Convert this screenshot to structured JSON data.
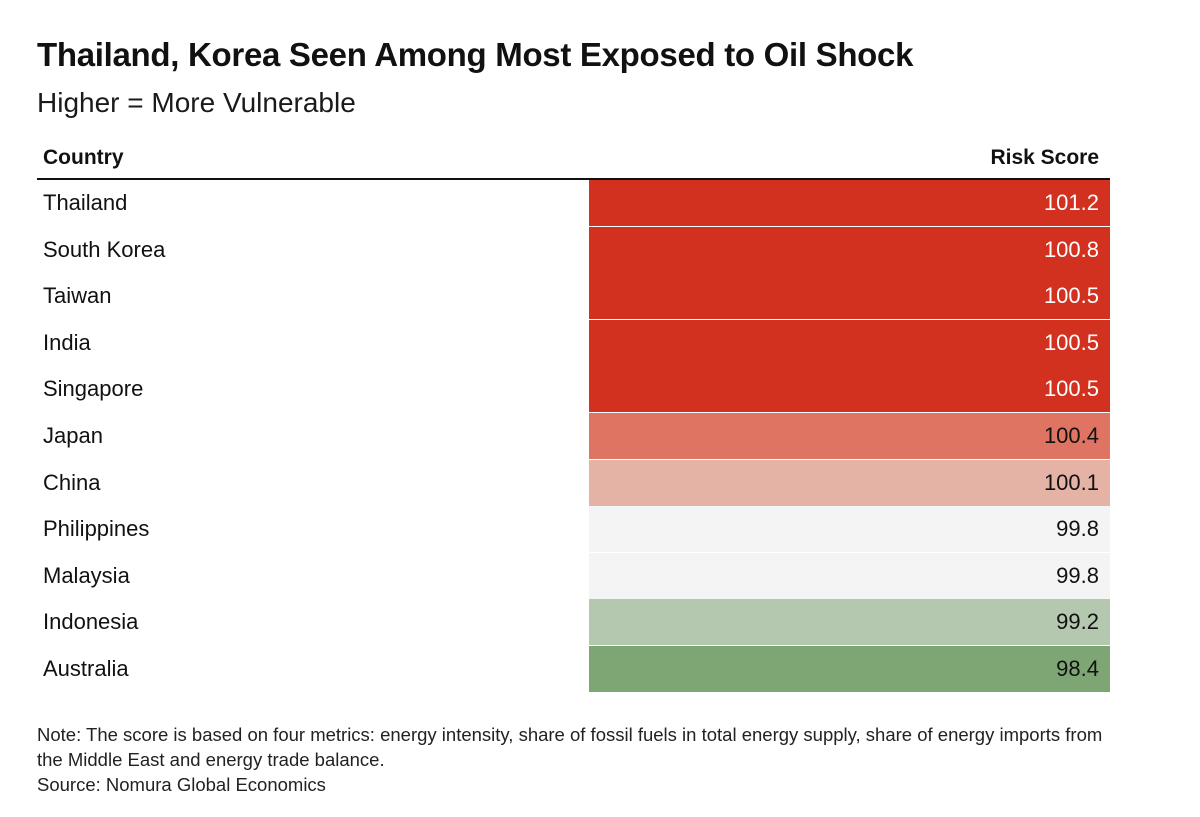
{
  "title": "Thailand, Korea Seen Among Most Exposed to Oil Shock",
  "subtitle": "Higher = More Vulnerable",
  "table": {
    "col_country": "Country",
    "col_score": "Risk Score"
  },
  "note": "Note: The score is based on four metrics: energy intensity, share of fossil fuels in total energy supply, share of energy imports from the Middle East and energy trade balance.",
  "source": "Source: Nomura Global Economics",
  "colors": {
    "high": "#d3311f",
    "mid_high": "#df7462",
    "low_high": "#e5b2a6",
    "neutral": "#f4f4f4",
    "low_green": "#b4c8b0",
    "green": "#7ea675",
    "text_light": "#ffffff",
    "text_dark": "#111111"
  },
  "chart_data": {
    "type": "table",
    "title": "Thailand, Korea Seen Among Most Exposed to Oil Shock",
    "subtitle": "Higher = More Vulnerable",
    "columns": [
      "Country",
      "Risk Score"
    ],
    "rows": [
      {
        "country": "Thailand",
        "score": "101.2",
        "color": "#d3311f",
        "text_color": "#ffffff"
      },
      {
        "country": "South Korea",
        "score": "100.8",
        "color": "#d3311f",
        "text_color": "#ffffff"
      },
      {
        "country": "Taiwan",
        "score": "100.5",
        "color": "#d3311f",
        "text_color": "#ffffff"
      },
      {
        "country": "India",
        "score": "100.5",
        "color": "#d3311f",
        "text_color": "#ffffff"
      },
      {
        "country": "Singapore",
        "score": "100.5",
        "color": "#d3311f",
        "text_color": "#ffffff"
      },
      {
        "country": "Japan",
        "score": "100.4",
        "color": "#df7462",
        "text_color": "#111111"
      },
      {
        "country": "China",
        "score": "100.1",
        "color": "#e5b2a6",
        "text_color": "#111111"
      },
      {
        "country": "Philippines",
        "score": "99.8",
        "color": "#f4f4f4",
        "text_color": "#111111"
      },
      {
        "country": "Malaysia",
        "score": "99.8",
        "color": "#f4f4f4",
        "text_color": "#111111"
      },
      {
        "country": "Indonesia",
        "score": "99.2",
        "color": "#b4c8b0",
        "text_color": "#111111"
      },
      {
        "country": "Australia",
        "score": "98.4",
        "color": "#7ea675",
        "text_color": "#111111"
      }
    ]
  }
}
